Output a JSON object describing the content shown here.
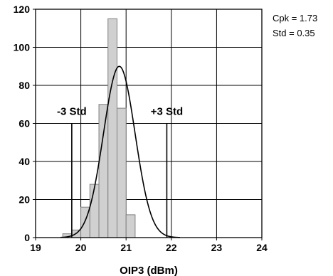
{
  "chart_data": {
    "type": "bar",
    "title": "",
    "xlabel": "OIP3 (dBm)",
    "ylabel": "",
    "xlim": [
      19,
      24
    ],
    "ylim": [
      0,
      120
    ],
    "x_ticks": [
      "19",
      "20",
      "21",
      "22",
      "23",
      "24"
    ],
    "y_ticks": [
      "0",
      "20",
      "40",
      "60",
      "80",
      "100",
      "120"
    ],
    "grid": true,
    "bins": [
      {
        "x0": 19.6,
        "x1": 19.8,
        "value": 2
      },
      {
        "x0": 19.8,
        "x1": 20.0,
        "value": 4
      },
      {
        "x0": 20.0,
        "x1": 20.2,
        "value": 16
      },
      {
        "x0": 20.2,
        "x1": 20.4,
        "value": 28
      },
      {
        "x0": 20.4,
        "x1": 20.6,
        "value": 70
      },
      {
        "x0": 20.6,
        "x1": 20.8,
        "value": 115
      },
      {
        "x0": 20.8,
        "x1": 21.0,
        "value": 68
      },
      {
        "x0": 21.0,
        "x1": 21.2,
        "value": 12
      }
    ],
    "curve": {
      "mean": 20.85,
      "std": 0.35,
      "peak": 90
    },
    "limits": [
      {
        "label": "-3 Std",
        "x": 19.8,
        "height": 60
      },
      {
        "label": "+3 Std",
        "x": 21.9,
        "height": 60
      }
    ],
    "stats": [
      "Cpk = 1.73",
      "Std = 0.35"
    ]
  },
  "colors": {
    "bar_fill": "#d0d0d0",
    "bar_stroke": "#808080",
    "grid": "#000000",
    "curve": "#000000"
  }
}
